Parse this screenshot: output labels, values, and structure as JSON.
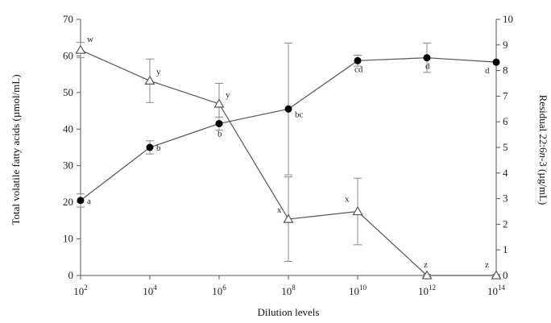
{
  "chart_data": {
    "type": "line",
    "xlabel": "Dilution levels",
    "ylabel_left_parts": [
      "Total volatile fatty acids (",
      "µ",
      "mol/mL)"
    ],
    "ylabel_right_parts": [
      "Residual 22:6",
      "n",
      "-3 (µg/mL)"
    ],
    "x_tick_base": "10",
    "x_tick_exponents": [
      "2",
      "4",
      "6",
      "8",
      "10",
      "12",
      "14"
    ],
    "ylim_left": [
      0,
      70
    ],
    "yticks_left": [
      "0",
      "10",
      "20",
      "30",
      "40",
      "50",
      "60",
      "70"
    ],
    "ylim_right": [
      0,
      10
    ],
    "yticks_right": [
      "0",
      "1",
      "2",
      "3",
      "4",
      "5",
      "6",
      "7",
      "8",
      "9",
      "10"
    ],
    "grid": false,
    "series": [
      {
        "marker": "filled-circle",
        "axis": "left",
        "color": "#000000",
        "x_exponents": [
          2,
          4,
          6,
          8,
          10,
          12,
          14
        ],
        "values": [
          20.5,
          35,
          41.5,
          45.5,
          58.7,
          59.5,
          58.3
        ],
        "errors": [
          1.8,
          1.8,
          1.8,
          18,
          1.5,
          4,
          0
        ],
        "labels": [
          "a",
          "b",
          "b",
          "bc",
          "cd",
          "d",
          "d"
        ]
      },
      {
        "marker": "open-triangle",
        "axis": "right",
        "color": "#555555",
        "x_exponents": [
          2,
          4,
          6,
          8,
          10,
          12,
          14
        ],
        "values": [
          8.8,
          7.6,
          6.7,
          2.2,
          2.5,
          0,
          0
        ],
        "errors": [
          0.3,
          0.85,
          0.8,
          1.65,
          1.3,
          0.05,
          0.05
        ],
        "labels": [
          "w",
          "y",
          "y",
          "x",
          "x",
          "z",
          "z"
        ]
      }
    ]
  }
}
